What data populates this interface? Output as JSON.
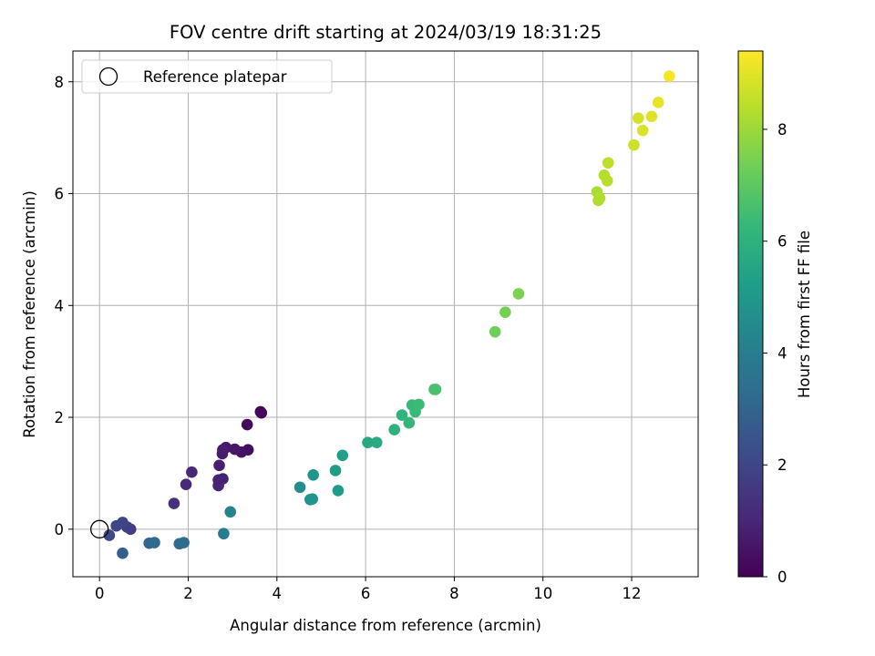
{
  "chart_data": {
    "type": "scatter",
    "title": "FOV centre drift starting at 2024/03/19 18:31:25",
    "xlabel": "Angular distance from reference (arcmin)",
    "ylabel": "Rotation from reference (arcmin)",
    "xlim": [
      -0.6,
      13.5
    ],
    "ylim": [
      -0.85,
      8.55
    ],
    "xticks": [
      "0",
      "2",
      "4",
      "6",
      "8",
      "10",
      "12"
    ],
    "yticks": [
      "0",
      "2",
      "4",
      "6",
      "8"
    ],
    "grid": true,
    "legend": {
      "placement": "upper-left",
      "entries": [
        "Reference platepar"
      ]
    },
    "reference_point": {
      "x": 0,
      "y": 0
    },
    "colorbar": {
      "label": "Hours from first FF file",
      "range": [
        0,
        9.4
      ],
      "ticks": [
        "0",
        "2",
        "4",
        "6",
        "8"
      ],
      "colormap": "viridis"
    },
    "points": [
      {
        "x": 3.65,
        "y": 2.08,
        "h": 0.1
      },
      {
        "x": 3.63,
        "y": 2.1,
        "h": 0.15
      },
      {
        "x": 3.33,
        "y": 1.87,
        "h": 0.25
      },
      {
        "x": 3.35,
        "y": 1.42,
        "h": 0.35
      },
      {
        "x": 3.2,
        "y": 1.38,
        "h": 0.45
      },
      {
        "x": 3.05,
        "y": 1.43,
        "h": 0.55
      },
      {
        "x": 2.85,
        "y": 1.46,
        "h": 0.65
      },
      {
        "x": 2.77,
        "y": 1.35,
        "h": 0.7
      },
      {
        "x": 2.78,
        "y": 1.42,
        "h": 0.75
      },
      {
        "x": 2.7,
        "y": 1.14,
        "h": 0.8
      },
      {
        "x": 2.78,
        "y": 0.9,
        "h": 0.85
      },
      {
        "x": 2.68,
        "y": 0.88,
        "h": 0.9
      },
      {
        "x": 2.68,
        "y": 0.78,
        "h": 0.95
      },
      {
        "x": 2.08,
        "y": 1.02,
        "h": 1.05
      },
      {
        "x": 1.95,
        "y": 0.8,
        "h": 1.15
      },
      {
        "x": 1.68,
        "y": 0.46,
        "h": 1.3
      },
      {
        "x": 0.7,
        "y": 0.0,
        "h": 1.7
      },
      {
        "x": 0.62,
        "y": 0.04,
        "h": 1.8
      },
      {
        "x": 0.52,
        "y": 0.12,
        "h": 1.9
      },
      {
        "x": 0.38,
        "y": 0.06,
        "h": 2.0
      },
      {
        "x": 0.22,
        "y": -0.11,
        "h": 2.1
      },
      {
        "x": 0.52,
        "y": -0.43,
        "h": 2.8
      },
      {
        "x": 1.12,
        "y": -0.25,
        "h": 3.1
      },
      {
        "x": 1.24,
        "y": -0.24,
        "h": 3.2
      },
      {
        "x": 1.8,
        "y": -0.26,
        "h": 3.25
      },
      {
        "x": 1.9,
        "y": -0.24,
        "h": 3.35
      },
      {
        "x": 2.8,
        "y": -0.08,
        "h": 3.9
      },
      {
        "x": 2.95,
        "y": 0.31,
        "h": 4.2
      },
      {
        "x": 4.52,
        "y": 0.75,
        "h": 4.6
      },
      {
        "x": 4.75,
        "y": 0.53,
        "h": 4.8
      },
      {
        "x": 4.8,
        "y": 0.54,
        "h": 4.85
      },
      {
        "x": 4.82,
        "y": 0.97,
        "h": 4.9
      },
      {
        "x": 5.38,
        "y": 0.69,
        "h": 5.1
      },
      {
        "x": 5.32,
        "y": 1.05,
        "h": 5.2
      },
      {
        "x": 5.48,
        "y": 1.32,
        "h": 5.3
      },
      {
        "x": 6.05,
        "y": 1.55,
        "h": 5.6
      },
      {
        "x": 6.25,
        "y": 1.55,
        "h": 5.7
      },
      {
        "x": 6.65,
        "y": 1.78,
        "h": 6.0
      },
      {
        "x": 6.82,
        "y": 2.04,
        "h": 6.1
      },
      {
        "x": 6.98,
        "y": 1.9,
        "h": 6.2
      },
      {
        "x": 7.05,
        "y": 2.22,
        "h": 6.3
      },
      {
        "x": 7.12,
        "y": 2.1,
        "h": 6.35
      },
      {
        "x": 7.2,
        "y": 2.23,
        "h": 6.4
      },
      {
        "x": 7.55,
        "y": 2.5,
        "h": 6.6
      },
      {
        "x": 7.58,
        "y": 2.5,
        "h": 6.65
      },
      {
        "x": 8.92,
        "y": 3.53,
        "h": 7.3
      },
      {
        "x": 9.15,
        "y": 3.88,
        "h": 7.4
      },
      {
        "x": 9.45,
        "y": 4.21,
        "h": 7.5
      },
      {
        "x": 11.22,
        "y": 6.03,
        "h": 8.2
      },
      {
        "x": 11.25,
        "y": 5.88,
        "h": 8.25
      },
      {
        "x": 11.28,
        "y": 5.92,
        "h": 8.3
      },
      {
        "x": 11.38,
        "y": 6.33,
        "h": 8.35
      },
      {
        "x": 11.45,
        "y": 6.23,
        "h": 8.4
      },
      {
        "x": 11.47,
        "y": 6.55,
        "h": 8.45
      },
      {
        "x": 12.05,
        "y": 6.87,
        "h": 8.7
      },
      {
        "x": 12.15,
        "y": 7.35,
        "h": 8.8
      },
      {
        "x": 12.25,
        "y": 7.13,
        "h": 8.85
      },
      {
        "x": 12.45,
        "y": 7.38,
        "h": 8.95
      },
      {
        "x": 12.6,
        "y": 7.63,
        "h": 9.05
      },
      {
        "x": 12.85,
        "y": 8.1,
        "h": 9.3
      }
    ]
  }
}
